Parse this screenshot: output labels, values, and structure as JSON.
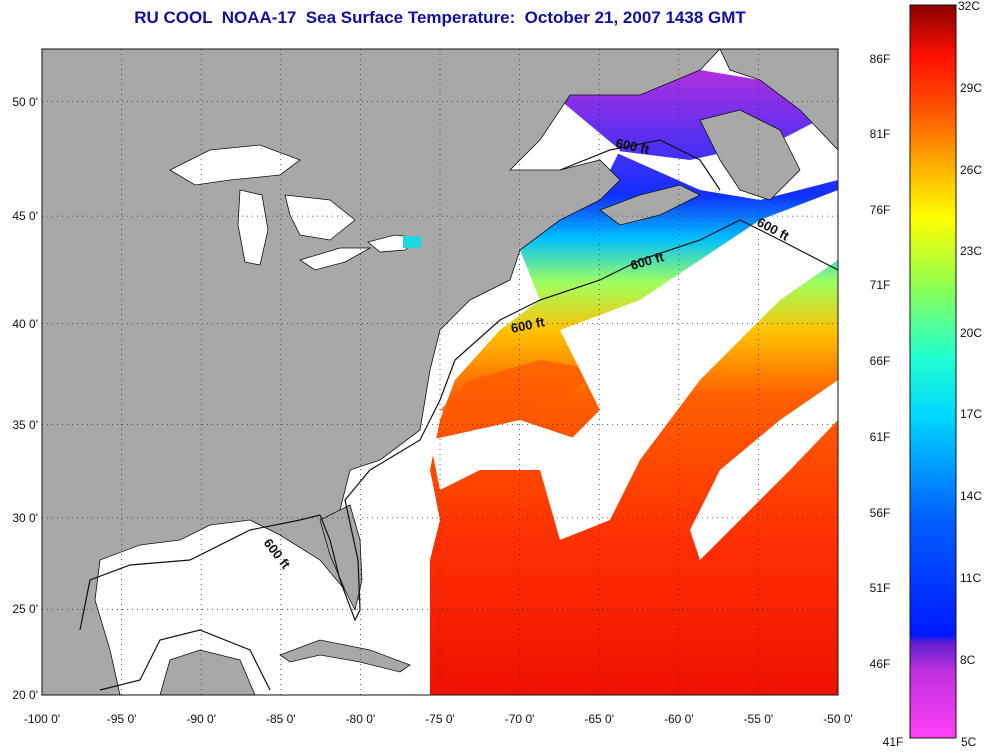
{
  "title": "RU COOL  NOAA-17  Sea Surface Temperature:  October 21, 2007 1438 GMT",
  "colors": {
    "land": "#a8a8a8",
    "cloud": "#ffffff",
    "contour": "#111111"
  },
  "map": {
    "lon_range": [
      -100,
      -50
    ],
    "lat_range": [
      20,
      52.3
    ],
    "lon_ticks": [
      "-100 0'",
      "-95 0'",
      "-90 0'",
      "-85 0'",
      "-80 0'",
      "-75 0'",
      "-70 0'",
      "-65 0'",
      "-60 0'",
      "-55 0'",
      "-50 0'"
    ],
    "lat_ticks": [
      "20 0'",
      "25 0'",
      "30 0'",
      "35 0'",
      "40 0'",
      "45 0'",
      "50 0'"
    ],
    "contour_labels": [
      "600 ft",
      "600 ft",
      "600 ft",
      "600 ft",
      "600 ft"
    ]
  },
  "colorbar": {
    "fahrenheit_labels": [
      "86F",
      "81F",
      "76F",
      "71F",
      "66F",
      "61F",
      "56F",
      "51F",
      "46F",
      "41F"
    ],
    "celsius_labels": [
      "32C",
      "29C",
      "26C",
      "23C",
      "20C",
      "17C",
      "14C",
      "11C",
      "8C",
      "5C"
    ],
    "range_c": [
      5,
      32
    ]
  }
}
